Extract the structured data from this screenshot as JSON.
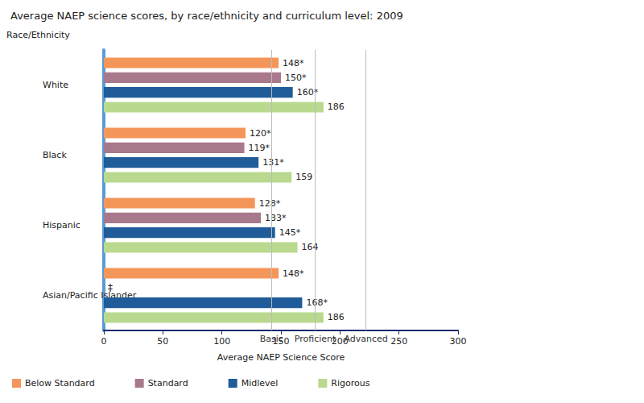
{
  "chart_data": {
    "type": "bar",
    "orientation": "horizontal",
    "title": "Average NAEP science scores, by race/ethnicity and curriculum level: 2009",
    "y_label": "Race/Ethnicity",
    "x_label": "Average NAEP Science Score",
    "categories": [
      "White",
      "Black",
      "Hispanic",
      "Asian/Pacific Islander"
    ],
    "series": [
      {
        "name": "Below Standard",
        "color": "#f4965a",
        "values": [
          148,
          120,
          128,
          148
        ],
        "value_labels": [
          "148*",
          "120*",
          "128*",
          "148*"
        ]
      },
      {
        "name": "Standard",
        "color": "#a8788c",
        "values": [
          150,
          119,
          133,
          null
        ],
        "value_labels": [
          "150*",
          "119*",
          "133*",
          null
        ]
      },
      {
        "name": "Midlevel",
        "color": "#1f5c99",
        "values": [
          160,
          131,
          145,
          168
        ],
        "value_labels": [
          "160*",
          "131*",
          "145*",
          "168*"
        ]
      },
      {
        "name": "Rigorous",
        "color": "#b9d98e",
        "values": [
          186,
          159,
          164,
          186
        ]
      }
    ],
    "xlim": [
      0,
      300
    ],
    "xticks": [
      0,
      50,
      100,
      150,
      200,
      250,
      300
    ],
    "grid": false,
    "data_labels": true,
    "legend": "bottom",
    "reference_lines": [
      {
        "label": "Basic",
        "value": 142
      },
      {
        "label": "Proficient",
        "value": 179
      },
      {
        "label": "Advanced",
        "value": 222
      }
    ],
    "annotations": [
      {
        "text": "‡",
        "category": "Asian/Pacific Islander",
        "series": "Standard"
      }
    ]
  }
}
